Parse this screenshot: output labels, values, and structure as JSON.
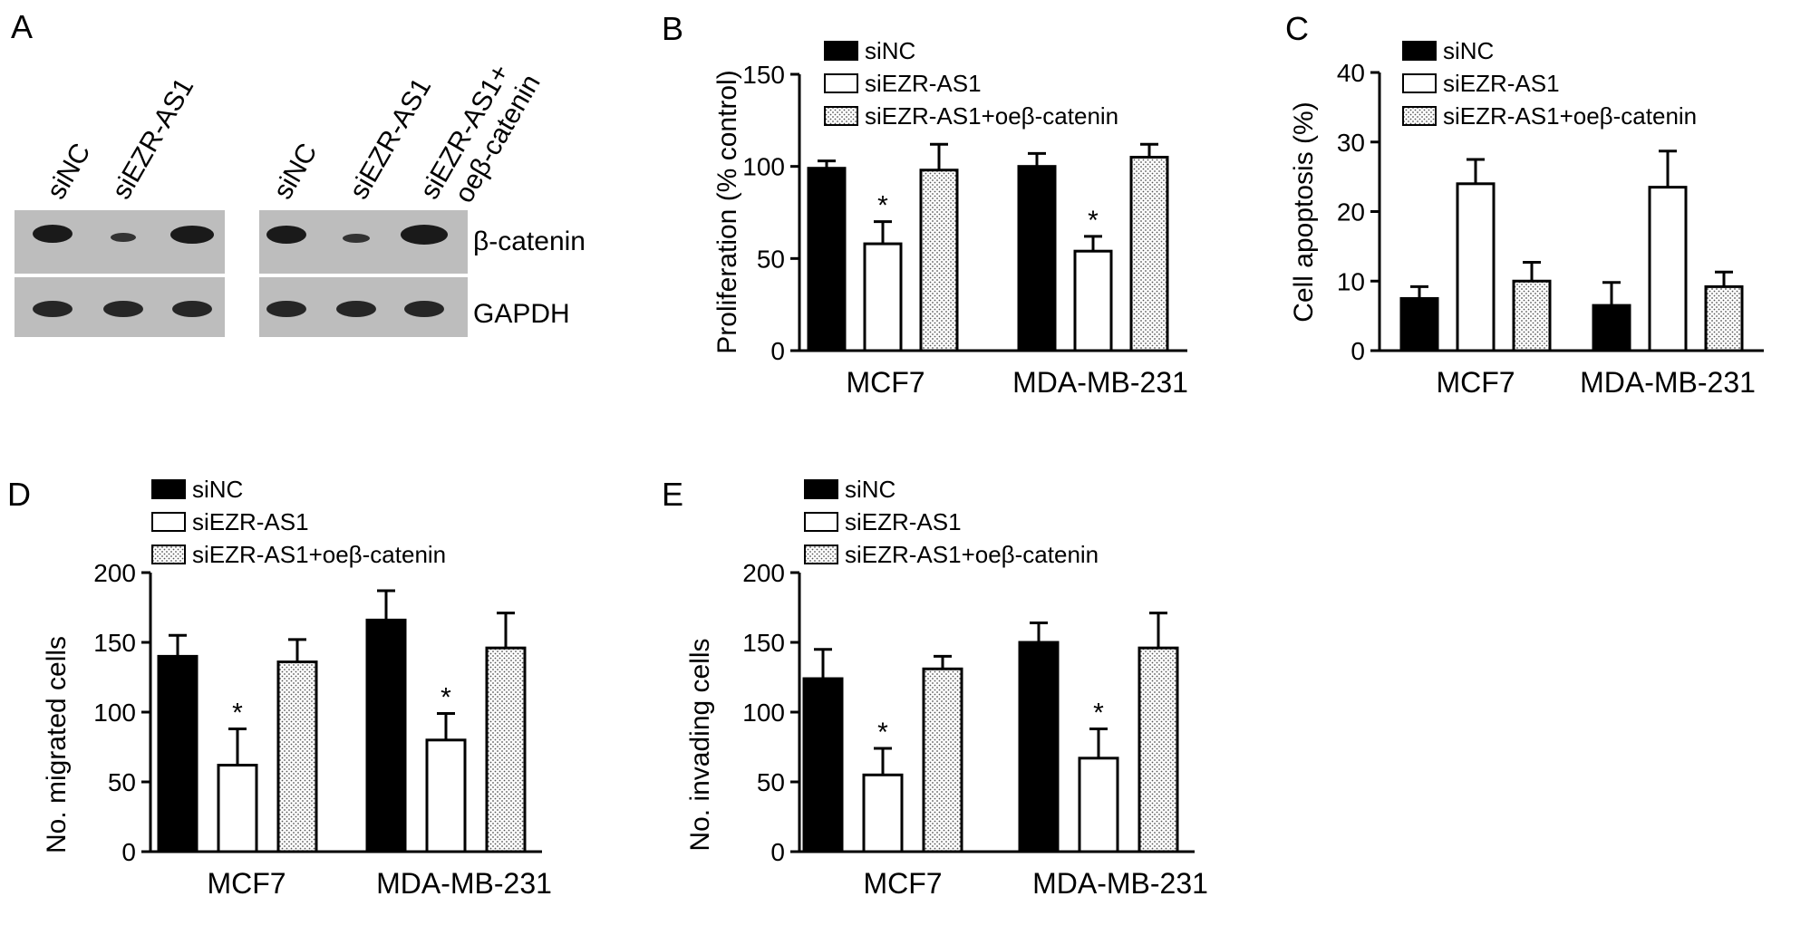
{
  "colors": {
    "black_fill": "#000000",
    "white_fill": "#ffffff",
    "blot_bg": "#bdbdbd",
    "band": "#1a1a1a"
  },
  "panelA": {
    "label": "A",
    "left_lanes": [
      "siNC",
      "siEZR-AS1"
    ],
    "right_lanes": [
      "siNC",
      "siEZR-AS1",
      "siEZR-AS1+",
      "oeβ-catenin"
    ],
    "row_labels": [
      "β-catenin",
      "GAPDH"
    ],
    "band_intensity": {
      "beta_catenin_left": [
        1.0,
        0.45,
        1.0
      ],
      "beta_catenin_right": [
        1.0,
        0.45,
        1.0
      ],
      "gapdh_left": [
        1.0,
        1.0,
        1.0
      ],
      "gapdh_right": [
        1.0,
        1.0,
        1.0
      ]
    }
  },
  "legend_items": [
    "siNC",
    "siEZR-AS1",
    "siEZR-AS1+oeβ-catenin"
  ],
  "chart_data": [
    {
      "panel": "B",
      "type": "bar",
      "categories": [
        "MCF7",
        "MDA-MB-231"
      ],
      "ylabel": "Proliferation (% control)",
      "ylim": [
        0,
        150
      ],
      "yticks": [
        0,
        50,
        100,
        150
      ],
      "series": [
        {
          "name": "siNC",
          "values": [
            99,
            100
          ],
          "errors": [
            4,
            7
          ]
        },
        {
          "name": "siEZR-AS1",
          "values": [
            58,
            54
          ],
          "errors": [
            12,
            8
          ]
        },
        {
          "name": "siEZR-AS1+oeβ-catenin",
          "values": [
            98,
            105
          ],
          "errors": [
            14,
            7
          ]
        }
      ],
      "annotations": [
        {
          "category": 0,
          "series": 1,
          "text": "*"
        },
        {
          "category": 1,
          "series": 1,
          "text": "*"
        }
      ]
    },
    {
      "panel": "C",
      "type": "bar",
      "categories": [
        "MCF7",
        "MDA-MB-231"
      ],
      "ylabel": "Cell apoptosis (%)",
      "ylim": [
        0,
        40
      ],
      "yticks": [
        0,
        10,
        20,
        30,
        40
      ],
      "series": [
        {
          "name": "siNC",
          "values": [
            7.5,
            6.5
          ],
          "errors": [
            1.7,
            3.3
          ]
        },
        {
          "name": "siEZR-AS1",
          "values": [
            24,
            23.5
          ],
          "errors": [
            3.5,
            5.2
          ]
        },
        {
          "name": "siEZR-AS1+oeβ-catenin",
          "values": [
            10,
            9.2
          ],
          "errors": [
            2.7,
            2.1
          ]
        }
      ],
      "annotations": []
    },
    {
      "panel": "D",
      "type": "bar",
      "categories": [
        "MCF7",
        "MDA-MB-231"
      ],
      "ylabel": "No. migrated cells",
      "ylim": [
        0,
        200
      ],
      "yticks": [
        0,
        50,
        100,
        150,
        200
      ],
      "series": [
        {
          "name": "siNC",
          "values": [
            140,
            166
          ],
          "errors": [
            15,
            21
          ]
        },
        {
          "name": "siEZR-AS1",
          "values": [
            62,
            80
          ],
          "errors": [
            26,
            19
          ]
        },
        {
          "name": "siEZR-AS1+oeβ-catenin",
          "values": [
            136,
            146
          ],
          "errors": [
            16,
            25
          ]
        }
      ],
      "annotations": [
        {
          "category": 0,
          "series": 1,
          "text": "*"
        },
        {
          "category": 1,
          "series": 1,
          "text": "*"
        }
      ]
    },
    {
      "panel": "E",
      "type": "bar",
      "categories": [
        "MCF7",
        "MDA-MB-231"
      ],
      "ylabel": "No. invading cells",
      "ylim": [
        0,
        200
      ],
      "yticks": [
        0,
        50,
        100,
        150,
        200
      ],
      "series": [
        {
          "name": "siNC",
          "values": [
            124,
            150
          ],
          "errors": [
            21,
            14
          ]
        },
        {
          "name": "siEZR-AS1",
          "values": [
            55,
            67
          ],
          "errors": [
            19,
            21
          ]
        },
        {
          "name": "siEZR-AS1+oeβ-catenin",
          "values": [
            131,
            146
          ],
          "errors": [
            9,
            25
          ]
        }
      ],
      "annotations": [
        {
          "category": 0,
          "series": 1,
          "text": "*"
        },
        {
          "category": 1,
          "series": 1,
          "text": "*"
        }
      ]
    }
  ]
}
